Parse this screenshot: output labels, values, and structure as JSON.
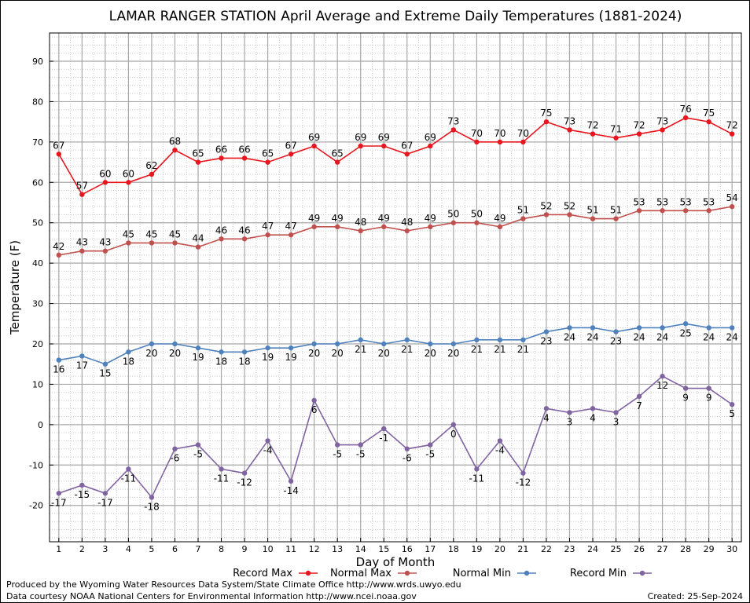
{
  "chart_data": {
    "type": "line",
    "title": "LAMAR RANGER STATION April Average and Extreme Daily Temperatures (1881-2024)",
    "xlabel": "Day of Month",
    "ylabel": "Temperature (F)",
    "x": [
      1,
      2,
      3,
      4,
      5,
      6,
      7,
      8,
      9,
      10,
      11,
      12,
      13,
      14,
      15,
      16,
      17,
      18,
      19,
      20,
      21,
      22,
      23,
      24,
      25,
      26,
      27,
      28,
      29,
      30
    ],
    "xlim": [
      0.6,
      30.4
    ],
    "ylim": [
      -29,
      97
    ],
    "y_ticks": [
      -20,
      -10,
      0,
      10,
      20,
      30,
      40,
      50,
      60,
      70,
      80,
      90
    ],
    "grid": true,
    "legend_position": "bottom",
    "series": [
      {
        "name": "Record Max",
        "color": "#e8161e",
        "values": [
          67,
          57,
          60,
          60,
          62,
          68,
          65,
          66,
          66,
          65,
          67,
          69,
          65,
          69,
          69,
          67,
          69,
          73,
          70,
          70,
          70,
          75,
          73,
          72,
          71,
          72,
          73,
          76,
          75,
          72
        ]
      },
      {
        "name": "Normal Max",
        "color": "#c0504d",
        "values": [
          42,
          43,
          43,
          45,
          45,
          45,
          44,
          46,
          46,
          47,
          47,
          49,
          49,
          48,
          49,
          48,
          49,
          50,
          50,
          49,
          51,
          52,
          52,
          51,
          51,
          53,
          53,
          53,
          53,
          54
        ]
      },
      {
        "name": "Normal Min",
        "color": "#4f81bd",
        "values": [
          16,
          17,
          15,
          18,
          20,
          20,
          19,
          18,
          18,
          19,
          19,
          20,
          20,
          21,
          20,
          21,
          20,
          20,
          21,
          21,
          21,
          23,
          24,
          24,
          23,
          24,
          24,
          25,
          24,
          24
        ]
      },
      {
        "name": "Record Min",
        "color": "#8064a2",
        "values": [
          -17,
          -15,
          -17,
          -11,
          -18,
          -6,
          -5,
          -11,
          -12,
          -4,
          -14,
          6,
          -5,
          -5,
          -1,
          -6,
          -5,
          0,
          -11,
          -4,
          -12,
          4,
          3,
          4,
          3,
          7,
          12,
          9,
          9,
          5
        ]
      }
    ]
  },
  "footer": {
    "line1": "Produced by the Wyoming Water Resources Data System/State Climate Office http://www.wrds.uwyo.edu",
    "line2": "Data courtesy NOAA National Centers for Environmental Information http://www.ncei.noaa.gov",
    "created": "Created:  25-Sep-2024"
  }
}
